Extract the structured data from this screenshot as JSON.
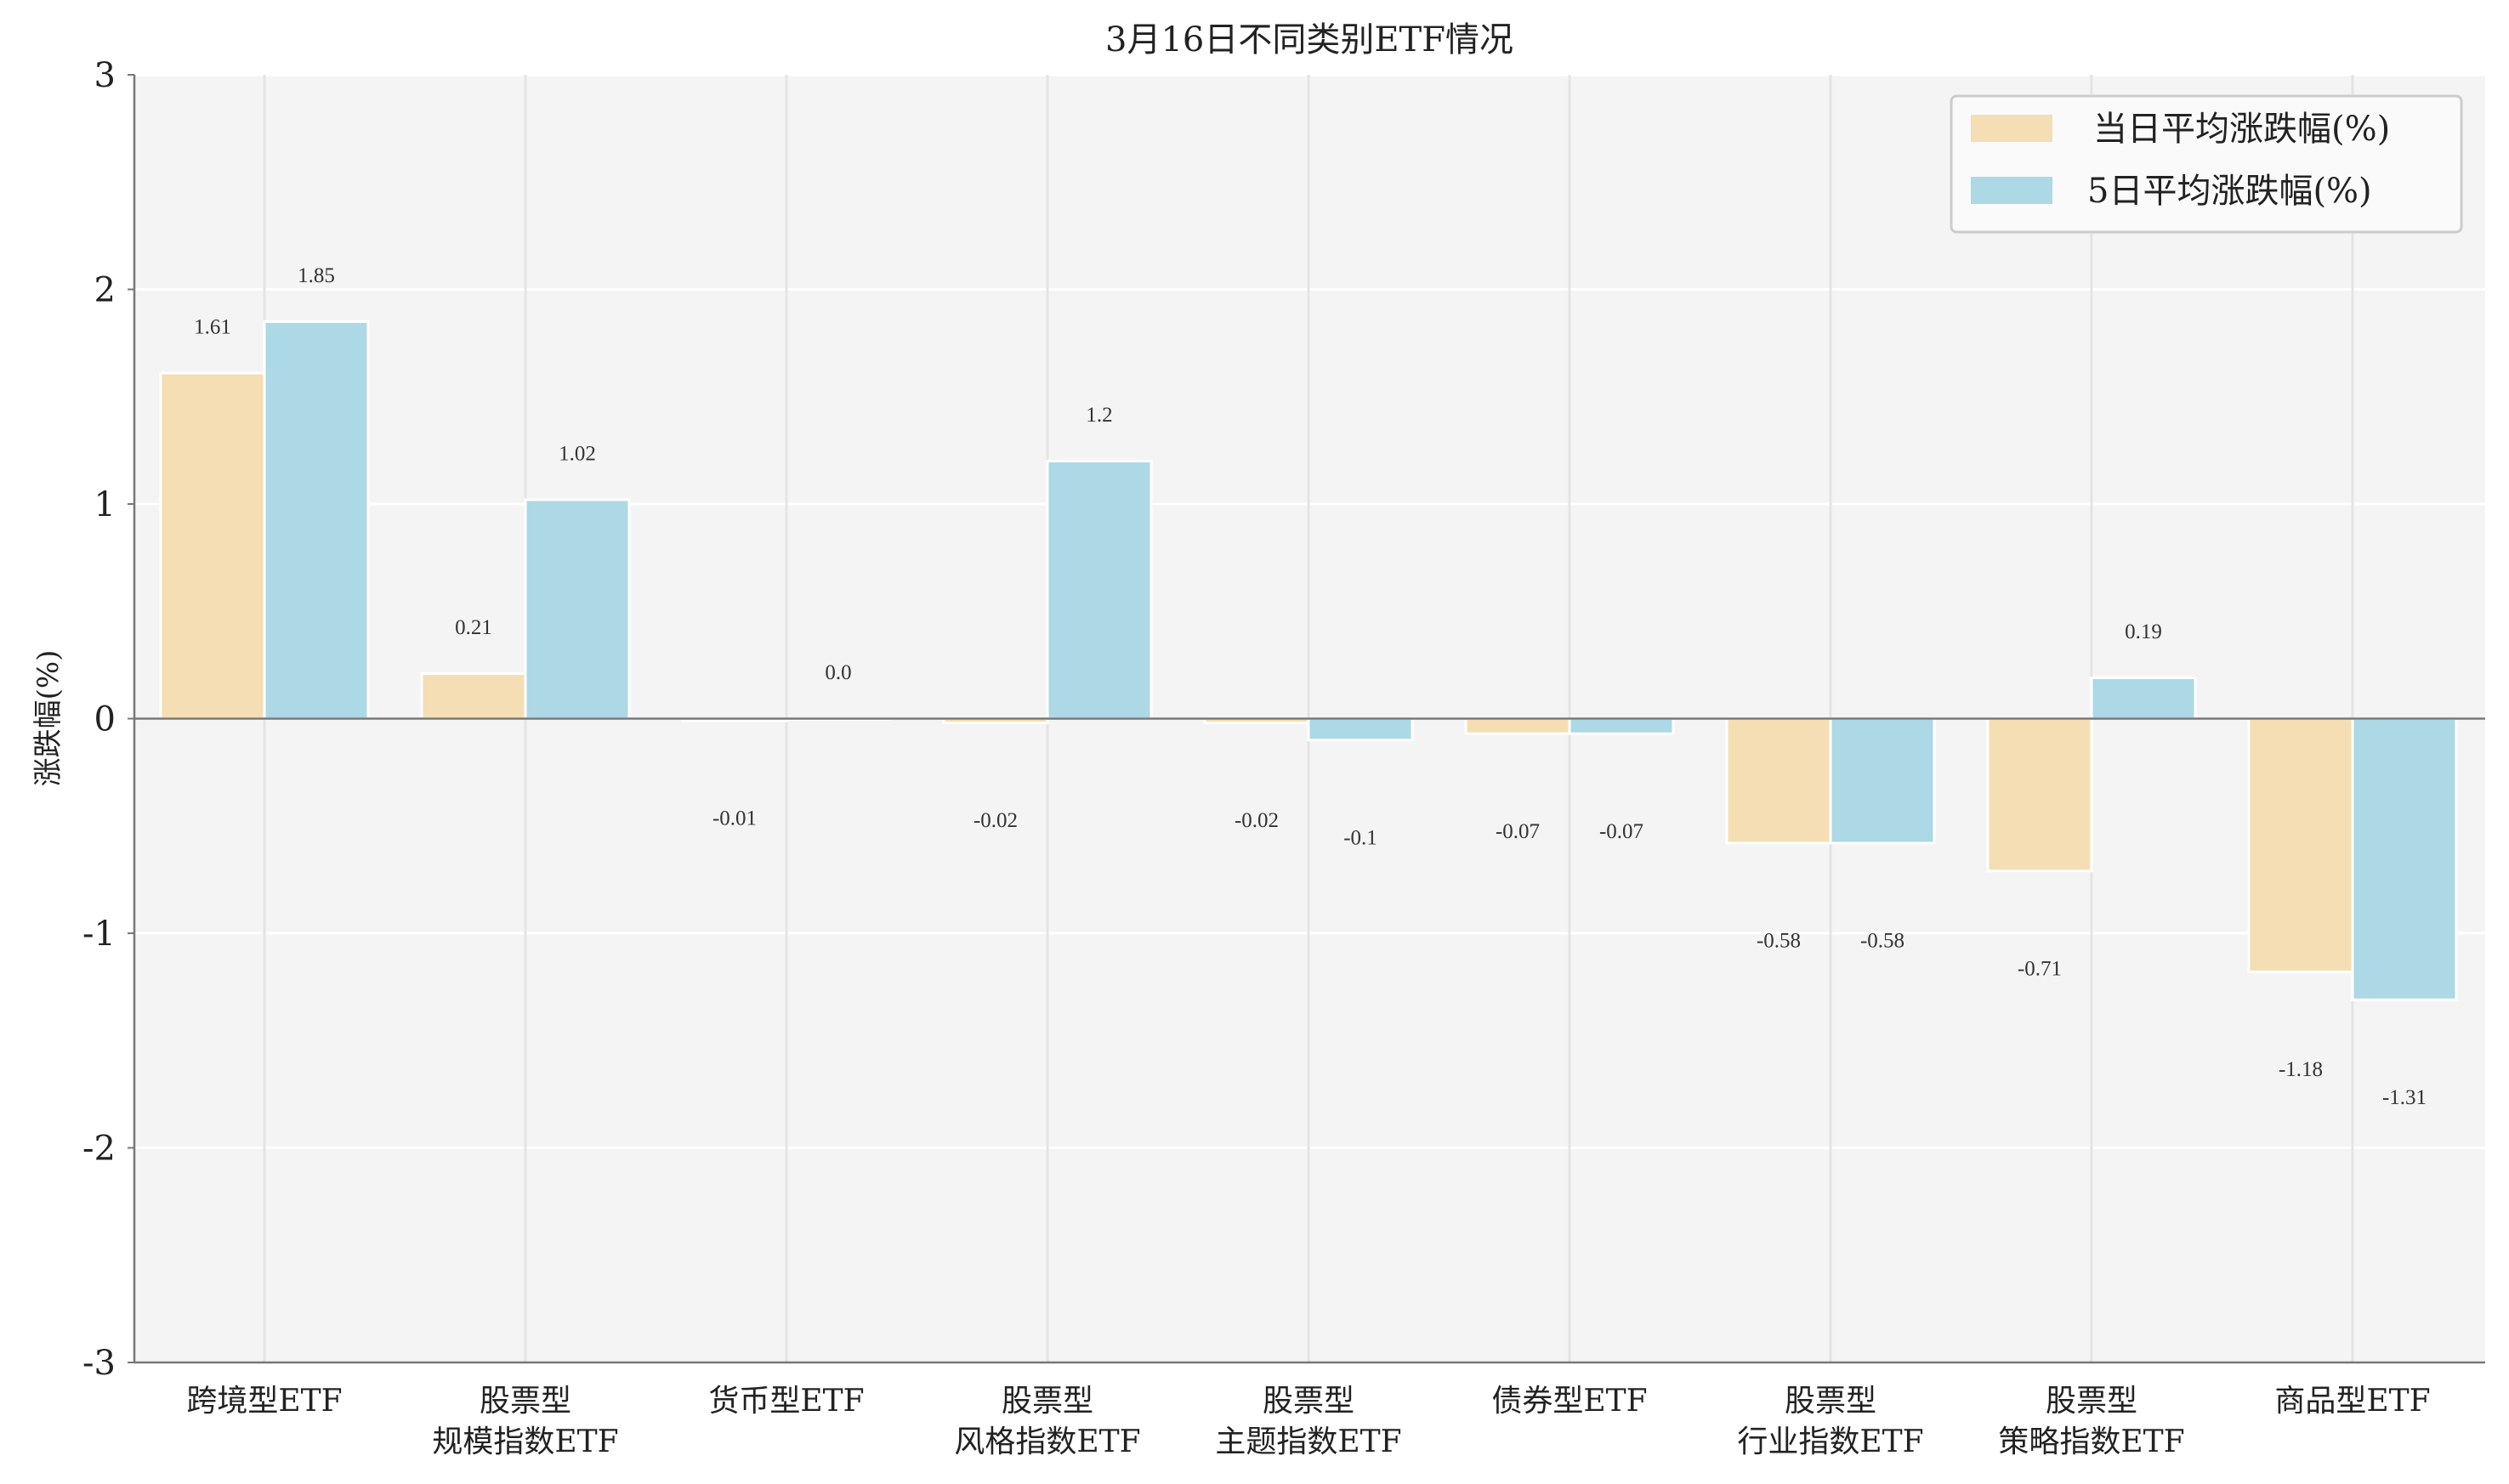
{
  "chart_data": {
    "type": "bar",
    "title": "3月16日不同类别ETF情况",
    "xlabel": "",
    "ylabel": "涨跌幅(%)",
    "ylim": [
      -3,
      3
    ],
    "yticks": [
      "-3",
      "-2",
      "-1",
      "0",
      "1",
      "2",
      "3"
    ],
    "grid": true,
    "legend_position": "top-right",
    "categories": [
      [
        "跨境型ETF"
      ],
      [
        "股票型",
        "规模指数ETF"
      ],
      [
        "货币型ETF"
      ],
      [
        "股票型",
        "风格指数ETF"
      ],
      [
        "股票型",
        "主题指数ETF"
      ],
      [
        "债券型ETF"
      ],
      [
        "股票型",
        "行业指数ETF"
      ],
      [
        "股票型",
        "策略指数ETF"
      ],
      [
        "商品型ETF"
      ]
    ],
    "series": [
      {
        "name": "当日平均涨跌幅(%)",
        "color": "#F5DEB3",
        "values": [
          1.61,
          0.21,
          -0.01,
          -0.02,
          -0.02,
          -0.07,
          -0.58,
          -0.71,
          -1.18
        ],
        "labels": [
          "1.61",
          "0.21",
          "-0.01",
          "-0.02",
          "-0.02",
          "-0.07",
          "-0.58",
          "-0.71",
          "-1.18"
        ]
      },
      {
        "name": "5日平均涨跌幅(%)",
        "color": "#ADD8E6",
        "values": [
          1.85,
          1.02,
          0.0,
          1.2,
          -0.1,
          -0.07,
          -0.58,
          0.19,
          -1.31
        ],
        "labels": [
          "1.85",
          "1.02",
          "0.0",
          "1.2",
          "-0.1",
          "-0.07",
          "-0.58",
          "0.19",
          "-1.31"
        ]
      }
    ]
  }
}
